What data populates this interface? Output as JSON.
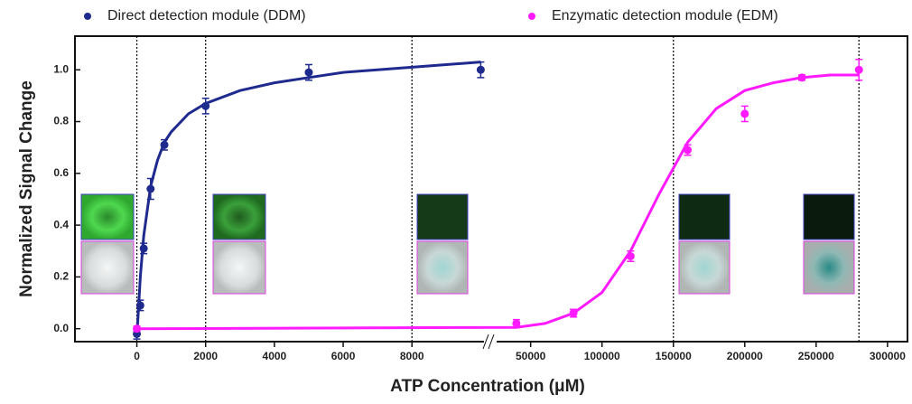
{
  "chart_data": {
    "type": "scatter",
    "x_label": "ATP Concentration (μM)",
    "y_label": "Normalized Signal Change",
    "x_segments": [
      {
        "xlim": [
          -1800,
          10200
        ],
        "xticks": [
          0,
          2000,
          4000,
          6000,
          8000
        ]
      },
      {
        "xlim": [
          23000,
          314000
        ],
        "xticks": [
          50000,
          100000,
          150000,
          200000,
          250000,
          300000
        ]
      }
    ],
    "ylim": [
      -0.05,
      1.13
    ],
    "yticks": [
      {
        "value": 0,
        "label": "0.0"
      },
      0.2,
      0.4,
      0.6,
      0.8,
      {
        "value": 1,
        "label": "1.0"
      }
    ],
    "vlines": [
      0,
      2000,
      8000,
      150000,
      280000
    ],
    "series": [
      {
        "name": "Direct detection module (DDM)",
        "color": "#1f2a8f",
        "x": [
          0,
          100,
          200,
          400,
          800,
          2000,
          5000,
          10000
        ],
        "values": [
          -0.02,
          0.09,
          0.31,
          0.54,
          0.71,
          0.86,
          0.99,
          1.0
        ],
        "errors": [
          0.02,
          0.02,
          0.02,
          0.04,
          0.02,
          0.03,
          0.03,
          0.03
        ],
        "fit": {
          "x": [
            0,
            100,
            200,
            400,
            600,
            800,
            1000,
            1500,
            2000,
            3000,
            4000,
            5000,
            6000,
            8000,
            10000
          ],
          "values": [
            -0.03,
            0.2,
            0.36,
            0.55,
            0.65,
            0.72,
            0.76,
            0.83,
            0.87,
            0.92,
            0.95,
            0.97,
            0.99,
            1.01,
            1.03
          ]
        }
      },
      {
        "name": "Enzymatic detection module (EDM)",
        "color": "#ff1aff",
        "x": [
          0,
          40000,
          80000,
          120000,
          160000,
          200000,
          240000,
          280000
        ],
        "values": [
          0.0,
          0.02,
          0.06,
          0.28,
          0.69,
          0.83,
          0.97,
          1.0
        ],
        "errors": [
          0.01,
          0.015,
          0.015,
          0.02,
          0.02,
          0.03,
          0.01,
          0.04
        ],
        "fit": {
          "x": [
            0,
            40000,
            60000,
            80000,
            100000,
            120000,
            140000,
            160000,
            180000,
            200000,
            220000,
            240000,
            260000,
            280000
          ],
          "values": [
            0,
            0.005,
            0.02,
            0.06,
            0.14,
            0.3,
            0.52,
            0.72,
            0.85,
            0.92,
            0.95,
            0.97,
            0.98,
            0.98
          ]
        }
      }
    ]
  }
}
